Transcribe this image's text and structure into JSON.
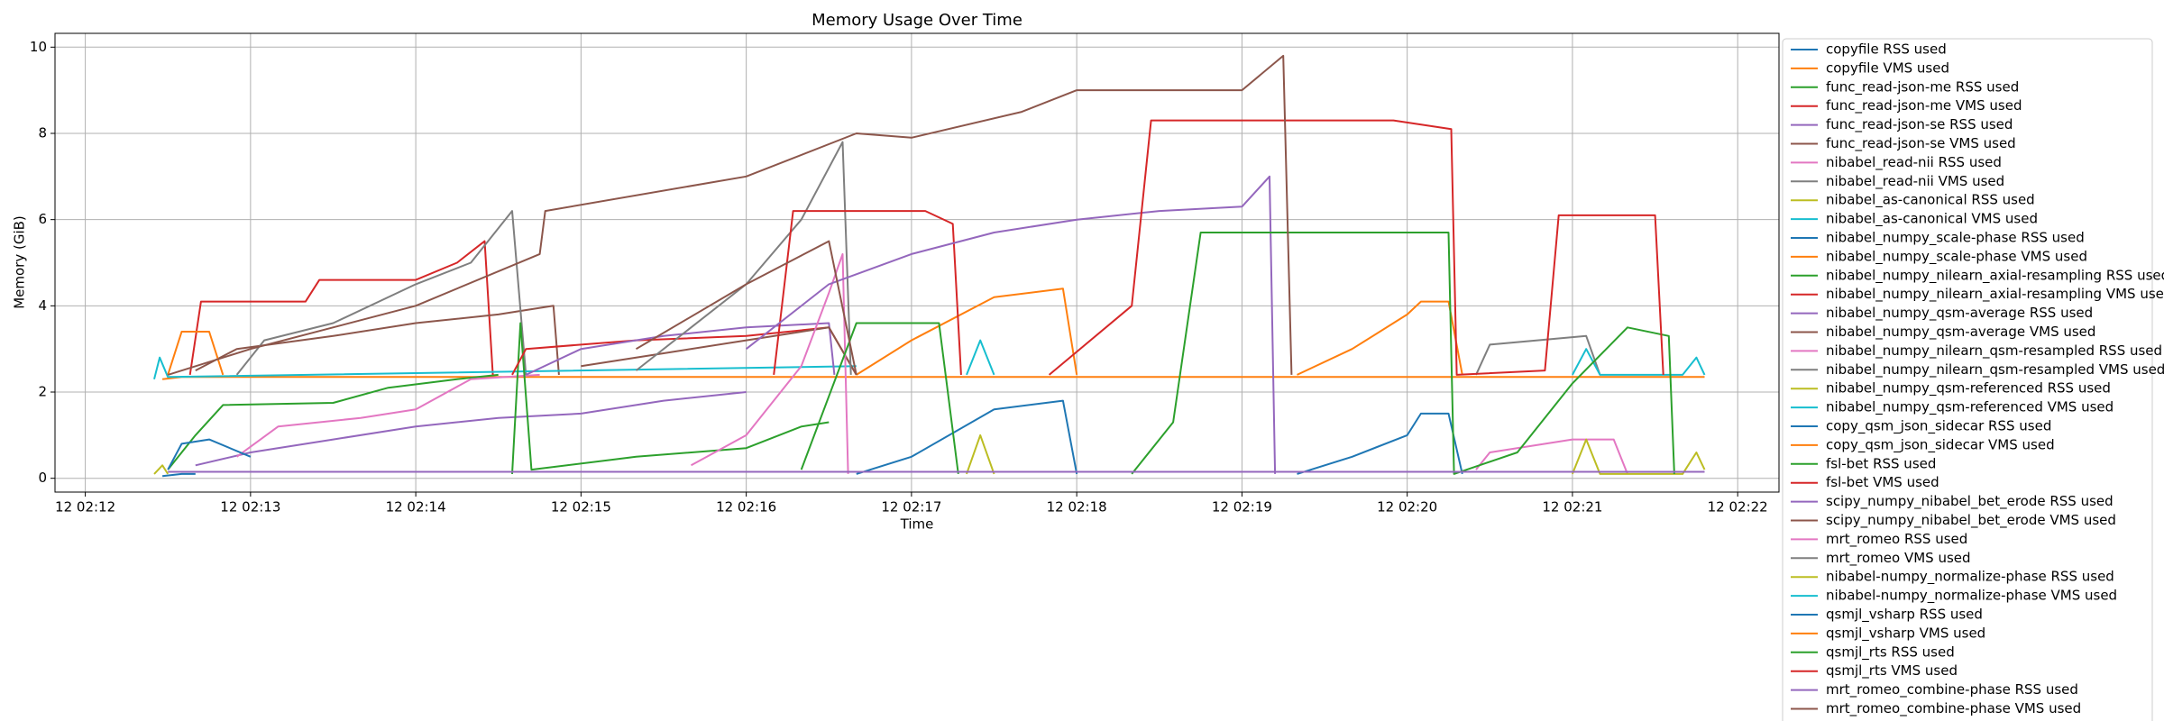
{
  "chart_data": {
    "type": "line",
    "title": "Memory Usage Over Time",
    "xlabel": "Time",
    "ylabel": "Memory (GiB)",
    "xlim": [
      "12 02:11:49",
      "12 02:22:15"
    ],
    "xticks": [
      "12 02:12",
      "12 02:13",
      "12 02:14",
      "12 02:15",
      "12 02:16",
      "12 02:17",
      "12 02:18",
      "12 02:19",
      "12 02:20",
      "12 02:21",
      "12 02:22"
    ],
    "ylim": [
      -0.32,
      10.32
    ],
    "yticks": [
      0,
      2,
      4,
      6,
      8,
      10
    ],
    "grid": true,
    "legend": "right",
    "series": [
      {
        "name": "copyfile RSS used",
        "color": "#1f77b4",
        "x": [
          "12 02:12:28",
          "12 02:12:35",
          "12 02:12:40"
        ],
        "values": [
          0.05,
          0.1,
          0.1
        ]
      },
      {
        "name": "copyfile VMS used",
        "color": "#ff7f0e",
        "x": [
          "12 02:12:28",
          "12 02:12:35",
          "12 02:21:48"
        ],
        "values": [
          2.3,
          2.35,
          2.35
        ]
      },
      {
        "name": "func_read-json-me RSS used",
        "color": "#2ca02c",
        "x": [
          "12 02:12:30",
          "12 02:12:40",
          "12 02:12:50",
          "12 02:13:30",
          "12 02:13:50",
          "12 02:14:15",
          "12 02:14:30"
        ],
        "values": [
          0.2,
          1.0,
          1.7,
          1.75,
          2.1,
          2.3,
          2.4
        ]
      },
      {
        "name": "func_read-json-me VMS used",
        "color": "#d62728",
        "x": [
          "12 02:12:38",
          "12 02:12:42",
          "12 02:13:20",
          "12 02:13:25",
          "12 02:14:00",
          "12 02:14:15",
          "12 02:14:25",
          "12 02:14:28"
        ],
        "values": [
          2.4,
          4.1,
          4.1,
          4.6,
          4.6,
          5.0,
          5.5,
          2.4
        ]
      },
      {
        "name": "func_read-json-se RSS used",
        "color": "#9467bd",
        "x": [
          "12 02:12:40",
          "12 02:13:00",
          "12 02:13:30",
          "12 02:14:00",
          "12 02:14:30",
          "12 02:15:00",
          "12 02:15:30",
          "12 02:16:00"
        ],
        "values": [
          0.3,
          0.6,
          0.9,
          1.2,
          1.4,
          1.5,
          1.8,
          2.0
        ]
      },
      {
        "name": "func_read-json-se VMS used",
        "color": "#8c564b",
        "x": [
          "12 02:12:40",
          "12 02:12:55",
          "12 02:13:30",
          "12 02:14:00",
          "12 02:14:30",
          "12 02:14:50",
          "12 02:14:52"
        ],
        "values": [
          2.5,
          3.0,
          3.3,
          3.6,
          3.8,
          4.0,
          2.4
        ]
      },
      {
        "name": "nibabel_read-nii RSS used",
        "color": "#e377c2",
        "x": [
          "12 02:12:55",
          "12 02:13:10",
          "12 02:13:40",
          "12 02:14:00",
          "12 02:14:20",
          "12 02:14:45"
        ],
        "values": [
          0.5,
          1.2,
          1.4,
          1.6,
          2.3,
          2.4
        ]
      },
      {
        "name": "nibabel_read-nii VMS used",
        "color": "#7f7f7f",
        "x": [
          "12 02:12:55",
          "12 02:13:05",
          "12 02:13:30",
          "12 02:14:00",
          "12 02:14:20",
          "12 02:14:35",
          "12 02:14:40"
        ],
        "values": [
          2.4,
          3.2,
          3.6,
          4.5,
          5.0,
          6.2,
          2.4
        ]
      },
      {
        "name": "nibabel_as-canonical RSS used",
        "color": "#bcbd22",
        "x": [
          "12 02:12:25",
          "12 02:12:28",
          "12 02:12:30"
        ],
        "values": [
          0.1,
          0.3,
          0.1
        ]
      },
      {
        "name": "nibabel_as-canonical VMS used",
        "color": "#17becf",
        "x": [
          "12 02:12:25",
          "12 02:12:27",
          "12 02:12:30",
          "12 02:16:40"
        ],
        "values": [
          2.3,
          2.8,
          2.35,
          2.6
        ]
      },
      {
        "name": "nibabel_numpy_scale-phase RSS used",
        "color": "#1f77b4",
        "x": [
          "12 02:12:30",
          "12 02:12:35",
          "12 02:12:45",
          "12 02:13:00"
        ],
        "values": [
          0.2,
          0.8,
          0.9,
          0.5
        ]
      },
      {
        "name": "nibabel_numpy_scale-phase VMS used",
        "color": "#ff7f0e",
        "x": [
          "12 02:12:30",
          "12 02:12:35",
          "12 02:12:45",
          "12 02:12:50"
        ],
        "values": [
          2.4,
          3.4,
          3.4,
          2.4
        ]
      },
      {
        "name": "nibabel_numpy_nilearn_axial-resampling RSS used",
        "color": "#2ca02c",
        "x": [
          "12 02:14:35",
          "12 02:14:38",
          "12 02:14:42",
          "12 02:15:20",
          "12 02:16:00",
          "12 02:16:20",
          "12 02:16:30"
        ],
        "values": [
          0.1,
          3.6,
          0.2,
          0.5,
          0.7,
          1.2,
          1.3
        ]
      },
      {
        "name": "nibabel_numpy_nilearn_axial-resampling VMS used",
        "color": "#d62728",
        "x": [
          "12 02:14:35",
          "12 02:14:40",
          "12 02:15:20",
          "12 02:16:00",
          "12 02:16:30",
          "12 02:16:40"
        ],
        "values": [
          2.4,
          3.0,
          3.2,
          3.3,
          3.5,
          2.4
        ]
      },
      {
        "name": "nibabel_numpy_qsm-average RSS used",
        "color": "#9467bd",
        "x": [
          "12 02:14:40",
          "12 02:15:00",
          "12 02:15:30",
          "12 02:16:00",
          "12 02:16:30",
          "12 02:16:32"
        ],
        "values": [
          2.4,
          3.0,
          3.3,
          3.5,
          3.6,
          2.4
        ]
      },
      {
        "name": "nibabel_numpy_qsm-average VMS used",
        "color": "#8c564b",
        "x": [
          "12 02:15:00",
          "12 02:15:30",
          "12 02:16:00",
          "12 02:16:30",
          "12 02:16:40"
        ],
        "values": [
          2.6,
          2.9,
          3.2,
          3.5,
          2.4
        ]
      },
      {
        "name": "nibabel_numpy_nilearn_qsm-resampled RSS used",
        "color": "#e377c2",
        "x": [
          "12 02:15:40",
          "12 02:16:00",
          "12 02:16:20",
          "12 02:16:30",
          "12 02:16:35",
          "12 02:16:37"
        ],
        "values": [
          0.3,
          1.0,
          2.6,
          4.3,
          5.2,
          0.1
        ]
      },
      {
        "name": "nibabel_numpy_nilearn_qsm-resampled VMS used",
        "color": "#7f7f7f",
        "x": [
          "12 02:15:20",
          "12 02:16:00",
          "12 02:16:20",
          "12 02:16:35",
          "12 02:16:38"
        ],
        "values": [
          2.5,
          4.5,
          6.0,
          7.8,
          2.4
        ]
      },
      {
        "name": "nibabel_numpy_qsm-referenced RSS used",
        "color": "#bcbd22",
        "x": [
          "12 02:17:20",
          "12 02:17:25",
          "12 02:17:30"
        ],
        "values": [
          0.1,
          1.0,
          0.1
        ]
      },
      {
        "name": "nibabel_numpy_qsm-referenced VMS used",
        "color": "#17becf",
        "x": [
          "12 02:17:20",
          "12 02:17:25",
          "12 02:17:30"
        ],
        "values": [
          2.4,
          3.2,
          2.4
        ]
      },
      {
        "name": "copy_qsm_json_sidecar RSS used",
        "color": "#1f77b4",
        "x": [
          "12 02:16:40",
          "12 02:17:00",
          "12 02:17:30",
          "12 02:17:55",
          "12 02:18:00"
        ],
        "values": [
          0.1,
          0.5,
          1.6,
          1.8,
          0.1
        ]
      },
      {
        "name": "copy_qsm_json_sidecar VMS used",
        "color": "#ff7f0e",
        "x": [
          "12 02:16:40",
          "12 02:17:00",
          "12 02:17:30",
          "12 02:17:55",
          "12 02:18:00"
        ],
        "values": [
          2.4,
          3.2,
          4.2,
          4.4,
          2.4
        ]
      },
      {
        "name": "fsl-bet RSS used",
        "color": "#2ca02c",
        "x": [
          "12 02:16:20",
          "12 02:16:40",
          "12 02:17:10",
          "12 02:17:17"
        ],
        "values": [
          0.2,
          3.6,
          3.6,
          0.1
        ]
      },
      {
        "name": "fsl-bet VMS used",
        "color": "#d62728",
        "x": [
          "12 02:16:10",
          "12 02:16:17",
          "12 02:17:05",
          "12 02:17:15",
          "12 02:17:18"
        ],
        "values": [
          2.4,
          6.2,
          6.2,
          5.9,
          2.4
        ]
      },
      {
        "name": "scipy_numpy_nibabel_bet_erode RSS used",
        "color": "#9467bd",
        "x": [
          "12 02:16:00",
          "12 02:16:30",
          "12 02:17:00",
          "12 02:17:30",
          "12 02:18:00",
          "12 02:18:30",
          "12 02:19:00",
          "12 02:19:10",
          "12 02:19:12"
        ],
        "values": [
          3.0,
          4.5,
          5.2,
          5.7,
          6.0,
          6.2,
          6.3,
          7.0,
          0.1
        ]
      },
      {
        "name": "scipy_numpy_nibabel_bet_erode VMS used",
        "color": "#8c564b",
        "x": [
          "12 02:15:20",
          "12 02:16:00",
          "12 02:16:30",
          "12 02:16:40"
        ],
        "values": [
          3.0,
          4.5,
          5.5,
          2.4
        ]
      },
      {
        "name": "mrt_romeo RSS used",
        "color": "#e377c2",
        "x": [
          "12 02:20:25",
          "12 02:20:30",
          "12 02:21:00",
          "12 02:21:15",
          "12 02:21:20"
        ],
        "values": [
          0.2,
          0.6,
          0.9,
          0.9,
          0.1
        ]
      },
      {
        "name": "mrt_romeo VMS used",
        "color": "#7f7f7f",
        "x": [
          "12 02:20:25",
          "12 02:20:30",
          "12 02:21:05",
          "12 02:21:10"
        ],
        "values": [
          2.4,
          3.1,
          3.3,
          2.4
        ]
      },
      {
        "name": "nibabel-numpy_normalize-phase RSS used",
        "color": "#bcbd22",
        "x": [
          "12 02:21:00",
          "12 02:21:05",
          "12 02:21:10",
          "12 02:21:40",
          "12 02:21:45",
          "12 02:21:48"
        ],
        "values": [
          0.1,
          0.9,
          0.1,
          0.1,
          0.6,
          0.2
        ]
      },
      {
        "name": "nibabel-numpy_normalize-phase VMS used",
        "color": "#17becf",
        "x": [
          "12 02:21:00",
          "12 02:21:05",
          "12 02:21:10",
          "12 02:21:40",
          "12 02:21:45",
          "12 02:21:48"
        ],
        "values": [
          2.4,
          3.0,
          2.4,
          2.4,
          2.8,
          2.4
        ]
      },
      {
        "name": "qsmjl_vsharp RSS used",
        "color": "#1f77b4",
        "x": [
          "12 02:19:20",
          "12 02:19:40",
          "12 02:20:00",
          "12 02:20:05",
          "12 02:20:15",
          "12 02:20:20"
        ],
        "values": [
          0.1,
          0.5,
          1.0,
          1.5,
          1.5,
          0.1
        ]
      },
      {
        "name": "qsmjl_vsharp VMS used",
        "color": "#ff7f0e",
        "x": [
          "12 02:19:20",
          "12 02:19:40",
          "12 02:20:00",
          "12 02:20:05",
          "12 02:20:15",
          "12 02:20:20"
        ],
        "values": [
          2.4,
          3.0,
          3.8,
          4.1,
          4.1,
          2.4
        ]
      },
      {
        "name": "qsmjl_rts RSS used",
        "color": "#2ca02c",
        "x": [
          "12 02:18:20",
          "12 02:18:35",
          "12 02:18:45",
          "12 02:20:15",
          "12 02:20:17",
          "12 02:20:40",
          "12 02:21:00",
          "12 02:21:20",
          "12 02:21:35",
          "12 02:21:37"
        ],
        "values": [
          0.1,
          1.3,
          5.7,
          5.7,
          0.1,
          0.6,
          2.2,
          3.5,
          3.3,
          0.1
        ]
      },
      {
        "name": "qsmjl_rts VMS used",
        "color": "#d62728",
        "x": [
          "12 02:17:50",
          "12 02:18:20",
          "12 02:18:27",
          "12 02:19:55",
          "12 02:20:16",
          "12 02:20:18",
          "12 02:20:50",
          "12 02:20:55",
          "12 02:21:30",
          "12 02:21:33"
        ],
        "values": [
          2.4,
          4.0,
          8.3,
          8.3,
          8.1,
          2.4,
          2.5,
          6.1,
          6.1,
          2.4
        ]
      },
      {
        "name": "mrt_romeo_combine-phase RSS used",
        "color": "#9467bd",
        "x": [
          "12 02:12:30",
          "12 02:21:48"
        ],
        "values": [
          0.15,
          0.15
        ]
      },
      {
        "name": "mrt_romeo_combine-phase VMS used",
        "color": "#8c564b",
        "x": [
          "12 02:12:30",
          "12 02:13:00",
          "12 02:14:00",
          "12 02:14:45",
          "12 02:14:47",
          "12 02:16:00",
          "12 02:16:40",
          "12 02:17:00",
          "12 02:17:40",
          "12 02:18:00",
          "12 02:19:00",
          "12 02:19:15",
          "12 02:19:18"
        ],
        "values": [
          2.4,
          3.0,
          4.0,
          5.2,
          6.2,
          7.0,
          8.0,
          7.9,
          8.5,
          9.0,
          9.0,
          9.8,
          2.4
        ]
      }
    ]
  }
}
